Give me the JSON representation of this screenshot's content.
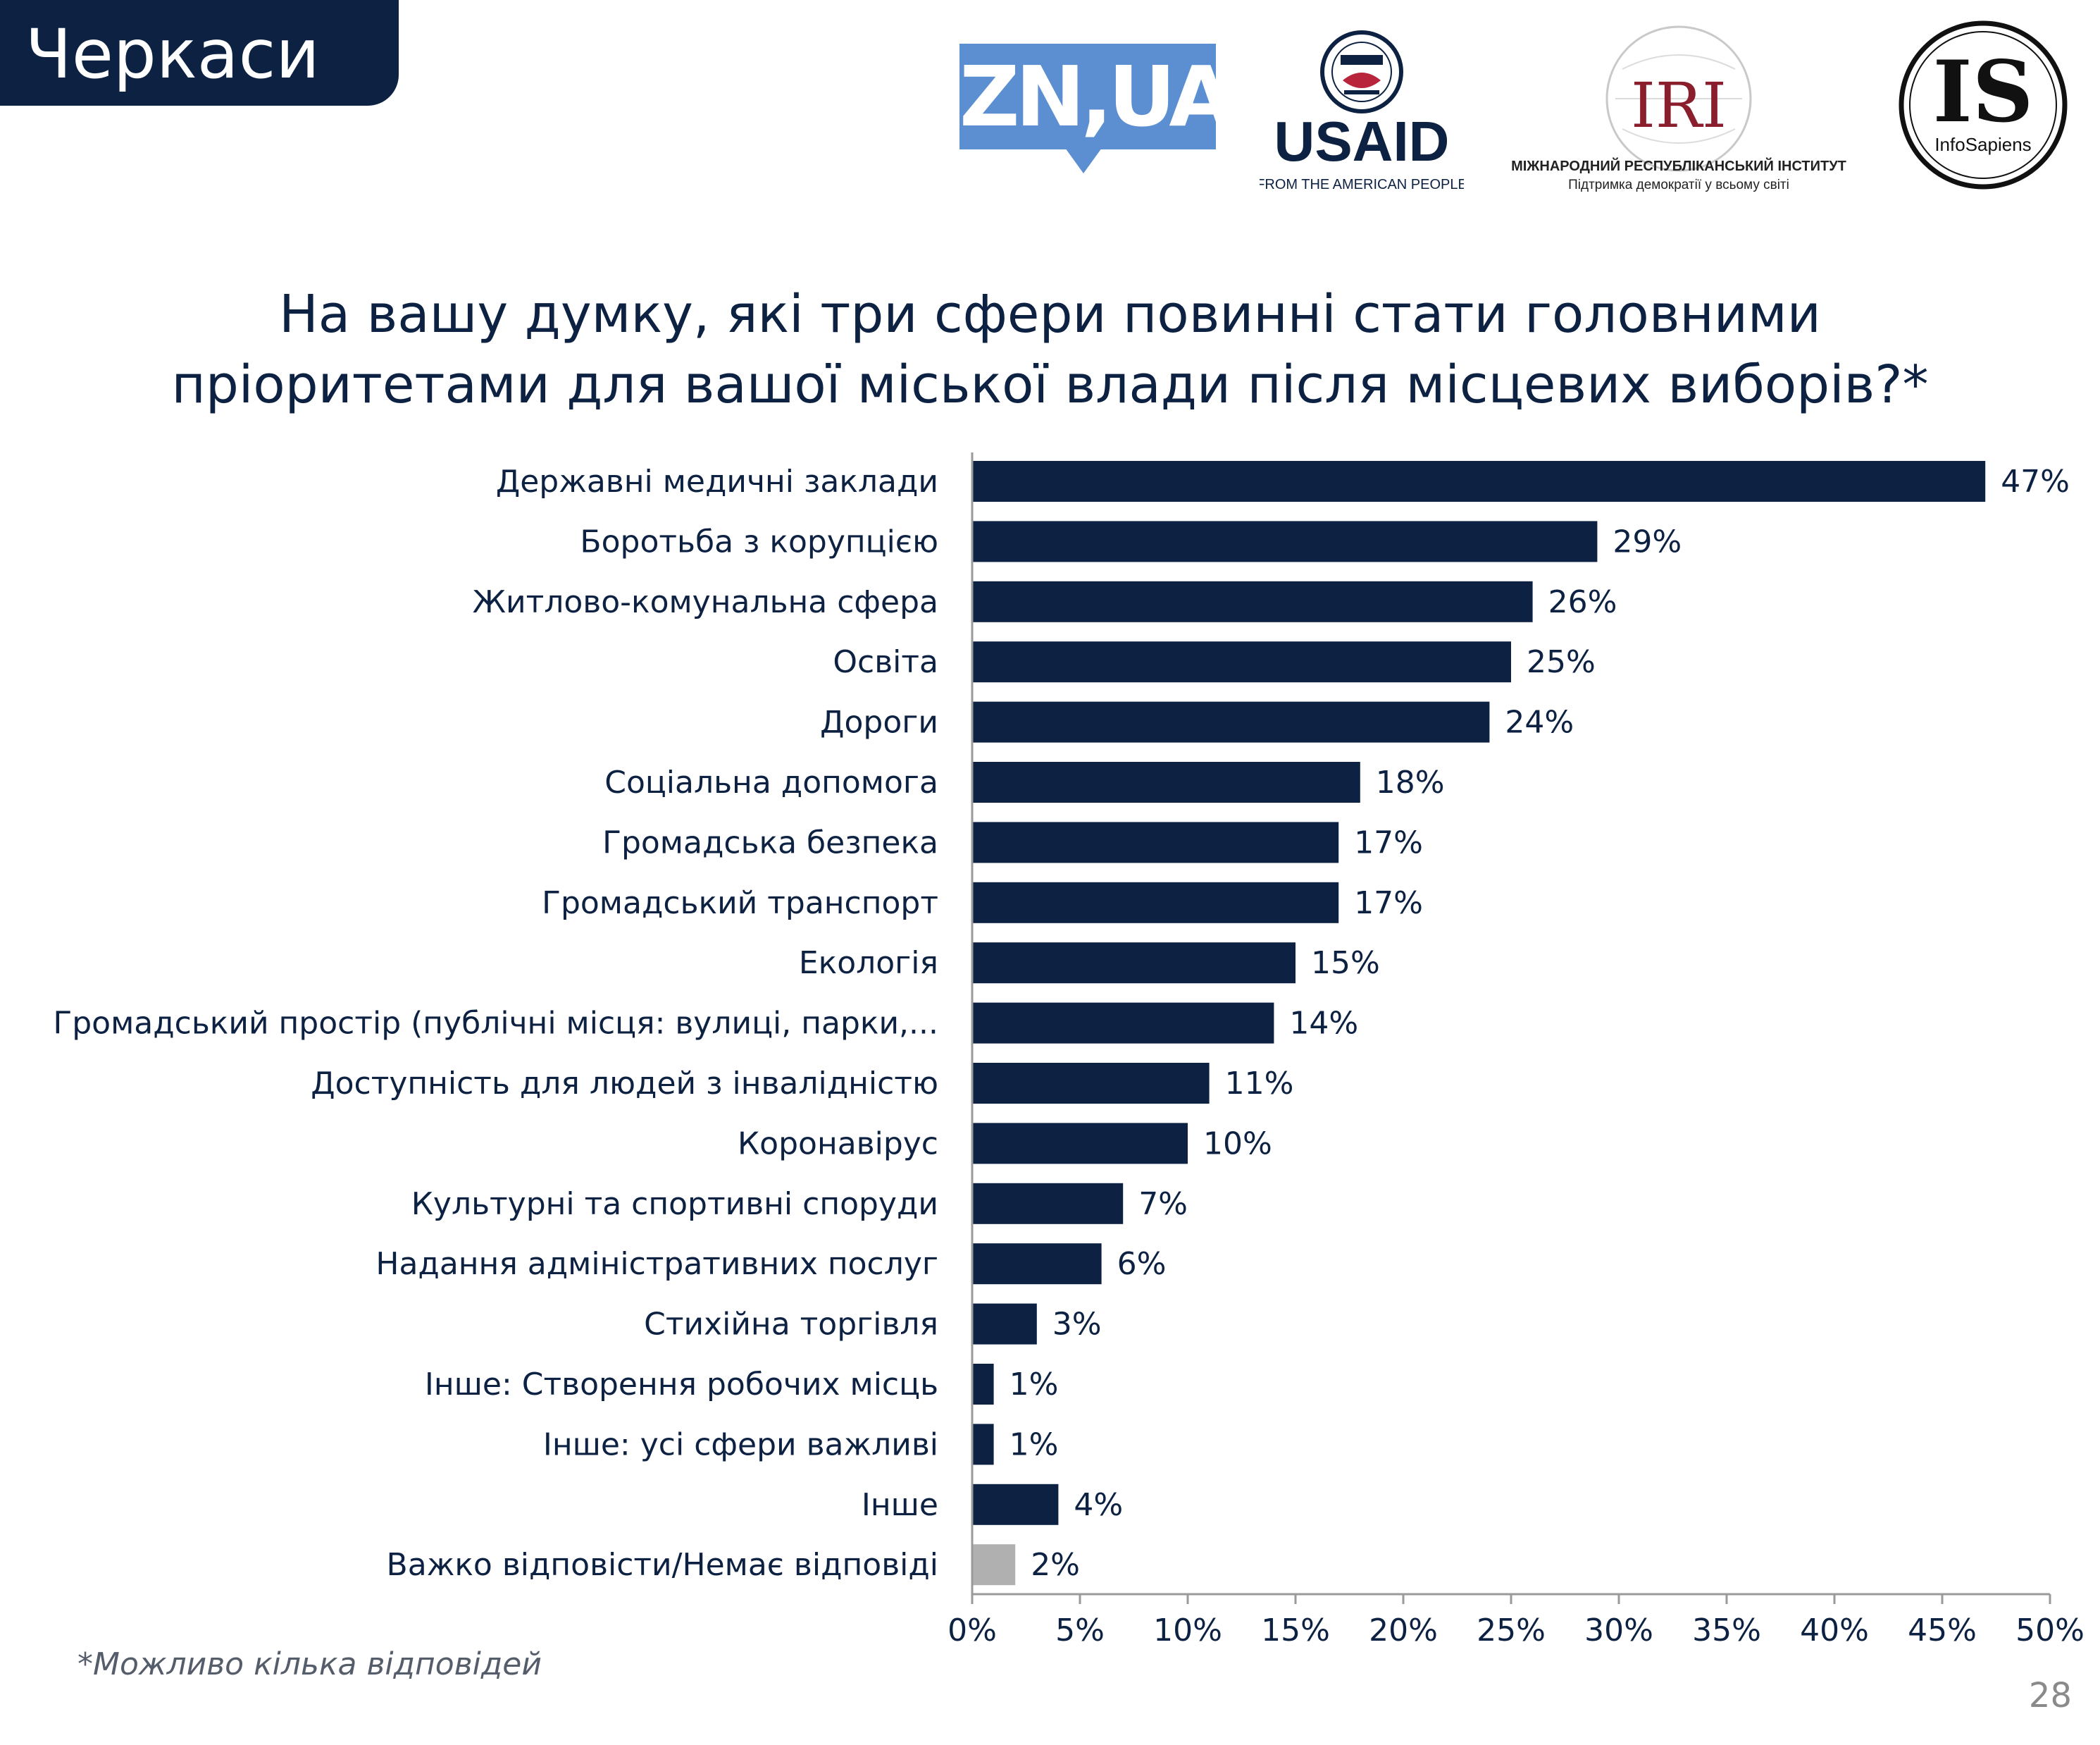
{
  "header": {
    "city": "Черкаси",
    "title_line1": "На вашу думку, які три сфери повинні стати головними",
    "title_line2": "пріоритетами для вашої міської влади після місцевих виборів?*"
  },
  "logos": {
    "zn": "ZN,UA",
    "usaid": "USAID",
    "usaid_tagline": "FROM THE AMERICAN PEOPLE",
    "iri": "IRI",
    "iri_name": "МІЖНАРОДНИЙ РЕСПУБЛІКАНСЬКИЙ ІНСТИТУТ",
    "iri_tagline": "Підтримка демократії у всьому світі",
    "is": "IS",
    "is_name": "InfoSapiens"
  },
  "chart_data": {
    "type": "bar",
    "orientation": "horizontal",
    "title": "На вашу думку, які три сфери повинні стати головними пріоритетами для вашої міської влади після місцевих виборів?*",
    "categories": [
      "Державні медичні заклади",
      "Боротьба з корупцією",
      "Житлово-комунальна сфера",
      "Освіта",
      "Дороги",
      "Соціальна допомога",
      "Громадська безпека",
      "Громадський транспорт",
      "Екологія",
      "Громадський простір (публічні місця: вулиці, парки,...",
      "Доступність для людей з інвалідністю",
      "Коронавірус",
      "Культурні та спортивні споруди",
      "Надання адміністративних послуг",
      "Стихійна торгівля",
      "Інше: Створення робочих місць",
      "Інше: усі сфери важливі",
      "Інше",
      "Важко відповісти/Немає відповіді"
    ],
    "values": [
      47,
      29,
      26,
      25,
      24,
      18,
      17,
      17,
      15,
      14,
      11,
      10,
      7,
      6,
      3,
      1,
      1,
      4,
      2
    ],
    "value_labels": [
      "47%",
      "29%",
      "26%",
      "25%",
      "24%",
      "18%",
      "17%",
      "17%",
      "15%",
      "14%",
      "11%",
      "10%",
      "7%",
      "6%",
      "3%",
      "1%",
      "1%",
      "4%",
      "2%"
    ],
    "bar_colors": [
      "#0d2242",
      "#0d2242",
      "#0d2242",
      "#0d2242",
      "#0d2242",
      "#0d2242",
      "#0d2242",
      "#0d2242",
      "#0d2242",
      "#0d2242",
      "#0d2242",
      "#0d2242",
      "#0d2242",
      "#0d2242",
      "#0d2242",
      "#0d2242",
      "#0d2242",
      "#0d2242",
      "#b0b0b0"
    ],
    "xlim": [
      0,
      50
    ],
    "xticks": [
      0,
      5,
      10,
      15,
      20,
      25,
      30,
      35,
      40,
      45,
      50
    ],
    "xtick_labels": [
      "0%",
      "5%",
      "10%",
      "15%",
      "20%",
      "25%",
      "30%",
      "35%",
      "40%",
      "45%",
      "50%"
    ],
    "xlabel": "",
    "ylabel": "",
    "grid": false,
    "legend": "none"
  },
  "footnote": "*Можливо кілька відповідей",
  "page_number": "28"
}
